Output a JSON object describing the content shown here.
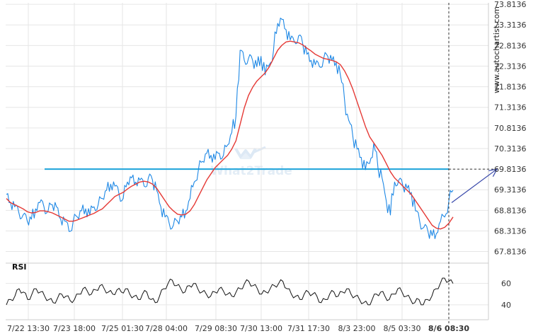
{
  "watermark": "www.autochartist.com",
  "brand": {
    "name": "What2Trade"
  },
  "colors": {
    "price": "#1e88e5",
    "moving_average": "#e53935",
    "level": "#29a8dc",
    "rsi": "#111111",
    "grid": "#e6e6e6",
    "arrow": "#3949ab",
    "brand": "#dde9f5"
  },
  "chart_data": [
    {
      "type": "line",
      "name": "price-panel",
      "yticks": [
        "73.8136",
        "73.3136",
        "72.8136",
        "72.3136",
        "71.8136",
        "71.3136",
        "70.8136",
        "70.3136",
        "69.8136",
        "69.3136",
        "68.8136",
        "68.3136",
        "67.8136"
      ],
      "ylim": [
        67.6,
        73.85
      ],
      "xticks": [
        "7/22 13:30",
        "7/23 18:00",
        "7/25 01:30",
        "7/28 04:00",
        "7/29 08:30",
        "7/30 13:00",
        "7/31 17:30",
        "8/3 23:00",
        "8/5 03:30",
        "8/6 08:30"
      ],
      "highlighted_xtick": "8/6 08:30",
      "level": 69.8136,
      "grid": true,
      "series": [
        {
          "kind": "price",
          "values": [
            69.2,
            69.0,
            68.9,
            68.75,
            68.7,
            68.55,
            68.6,
            68.85,
            69.0,
            68.9,
            68.8,
            68.95,
            68.9,
            68.6,
            68.55,
            68.3,
            68.55,
            68.65,
            68.8,
            68.85,
            68.7,
            68.9,
            68.95,
            69.1,
            69.3,
            69.45,
            69.4,
            69.2,
            69.1,
            69.5,
            69.6,
            69.5,
            69.55,
            69.4,
            69.6,
            69.55,
            69.3,
            68.9,
            68.65,
            68.5,
            68.45,
            68.55,
            68.65,
            68.8,
            69.1,
            69.5,
            69.8,
            70.0,
            70.2,
            70.15,
            70.05,
            70.2,
            70.15,
            70.4,
            70.7,
            71.1,
            72.7,
            72.45,
            72.5,
            72.45,
            72.3,
            72.55,
            72.1,
            72.35,
            72.7,
            73.35,
            73.45,
            73.2,
            72.95,
            72.9,
            73.05,
            72.85,
            72.6,
            72.45,
            72.35,
            72.3,
            72.5,
            72.55,
            72.45,
            72.4,
            72.1,
            71.5,
            71.0,
            70.6,
            70.3,
            70.1,
            69.8,
            69.95,
            70.45,
            69.85,
            69.6,
            69.05,
            68.7,
            69.5,
            69.55,
            69.4,
            69.35,
            69.25,
            68.8,
            68.55,
            68.4,
            68.3,
            68.2,
            68.25,
            68.55,
            68.65,
            69.05,
            69.3
          ]
        },
        {
          "kind": "moving-average",
          "values": [
            69.1,
            69.0,
            68.95,
            68.9,
            68.85,
            68.78,
            68.75,
            68.76,
            68.8,
            68.8,
            68.78,
            68.75,
            68.7,
            68.65,
            68.6,
            68.55,
            68.55,
            68.58,
            68.62,
            68.66,
            68.7,
            68.74,
            68.8,
            68.85,
            68.95,
            69.05,
            69.15,
            69.2,
            69.25,
            69.33,
            69.4,
            69.45,
            69.5,
            69.52,
            69.5,
            69.45,
            69.35,
            69.2,
            69.05,
            68.9,
            68.8,
            68.72,
            68.7,
            68.72,
            68.8,
            68.95,
            69.15,
            69.35,
            69.55,
            69.7,
            69.85,
            69.95,
            70.05,
            70.15,
            70.3,
            70.5,
            70.9,
            71.3,
            71.6,
            71.8,
            71.95,
            72.05,
            72.15,
            72.3,
            72.5,
            72.7,
            72.82,
            72.9,
            72.92,
            72.9,
            72.88,
            72.83,
            72.75,
            72.68,
            72.6,
            72.55,
            72.5,
            72.48,
            72.45,
            72.42,
            72.35,
            72.2,
            72.0,
            71.75,
            71.45,
            71.15,
            70.85,
            70.6,
            70.45,
            70.3,
            70.15,
            69.95,
            69.75,
            69.6,
            69.5,
            69.4,
            69.3,
            69.2,
            69.05,
            68.9,
            68.75,
            68.6,
            68.45,
            68.38,
            68.36,
            68.4,
            68.5,
            68.65
          ]
        }
      ]
    },
    {
      "type": "line",
      "name": "RSI",
      "title": "RSI",
      "yticks": [
        "60",
        "40"
      ],
      "ylim": [
        34,
        75
      ],
      "series": [
        {
          "name": "RSI",
          "values": [
            40,
            45,
            48,
            55,
            52,
            45,
            50,
            55,
            52,
            48,
            45,
            42,
            46,
            50,
            48,
            44,
            45,
            50,
            55,
            53,
            50,
            54,
            58,
            55,
            52,
            50,
            54,
            52,
            55,
            50,
            48,
            45,
            50,
            52,
            45,
            42,
            48,
            55,
            60,
            63,
            58,
            55,
            52,
            58,
            60,
            55,
            52,
            50,
            48,
            52,
            55,
            53,
            50,
            48,
            52,
            55,
            60,
            62,
            58,
            55,
            50,
            52,
            55,
            58,
            60,
            62,
            55,
            50,
            48,
            45,
            50,
            52,
            50,
            48,
            42,
            45,
            50,
            52,
            48,
            52,
            55,
            50,
            48,
            45,
            42,
            40,
            45,
            50,
            52,
            48,
            45,
            50,
            55,
            52,
            48,
            45,
            42,
            45,
            40,
            45,
            48,
            55,
            60,
            65,
            62,
            60
          ]
        }
      ]
    }
  ]
}
